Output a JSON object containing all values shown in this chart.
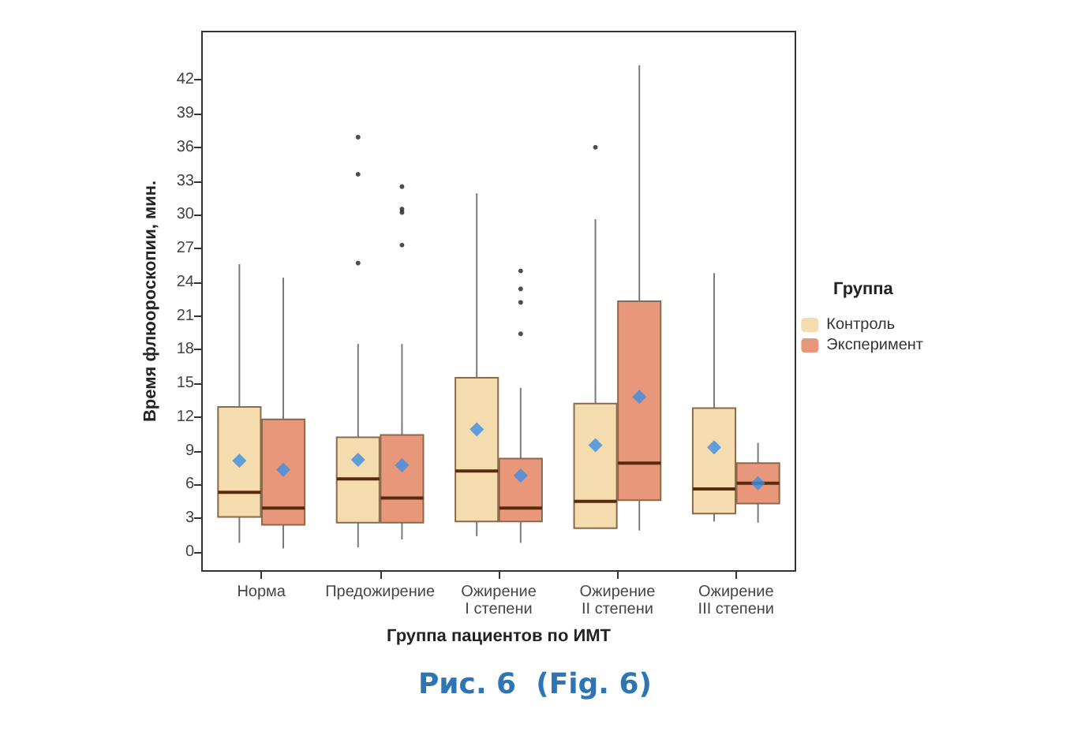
{
  "chart_data": {
    "type": "box",
    "title": "Рис. 6  (Fig. 6)",
    "xlabel": "Группа пациентов по ИМТ",
    "ylabel": "Время флюороскопии, мин.",
    "legend_title": "Группа",
    "legend": "right",
    "grid": false,
    "categories": [
      "Норма",
      "Предожирение",
      "Ожирение\nI степени",
      "Ожирение\nII степени",
      "Ожирение\nIII степени"
    ],
    "ylim": [
      -1.7,
      46.3
    ],
    "yticks": [
      0,
      3,
      6,
      9,
      12,
      15,
      18,
      21,
      24,
      27,
      30,
      33,
      36,
      39,
      42
    ],
    "series": [
      {
        "name": "Контроль",
        "color": "#f5dcae",
        "boxes": [
          {
            "low": 0.8,
            "q1": 3.1,
            "median": 5.3,
            "q3": 12.9,
            "high": 25.6,
            "mean": 8.1
          },
          {
            "low": 0.4,
            "q1": 2.6,
            "median": 6.5,
            "q3": 10.2,
            "high": 18.5,
            "mean": 8.2,
            "outliers": [
              25.7,
              33.6,
              36.9
            ]
          },
          {
            "low": 1.4,
            "q1": 2.7,
            "median": 7.2,
            "q3": 15.5,
            "high": 31.9,
            "mean": 10.9
          },
          {
            "low": 2.1,
            "q1": 2.1,
            "median": 4.5,
            "q3": 13.2,
            "high": 29.6,
            "mean": 9.5,
            "outliers": [
              36.0
            ]
          },
          {
            "low": 2.7,
            "q1": 3.4,
            "median": 5.6,
            "q3": 12.8,
            "high": 24.8,
            "mean": 9.3
          }
        ]
      },
      {
        "name": "Эксперимент",
        "color": "#e8977a",
        "boxes": [
          {
            "low": 0.3,
            "q1": 2.4,
            "median": 3.9,
            "q3": 11.8,
            "high": 24.4,
            "mean": 7.3
          },
          {
            "low": 1.1,
            "q1": 2.6,
            "median": 4.8,
            "q3": 10.4,
            "high": 18.5,
            "mean": 7.7,
            "outliers": [
              27.3,
              30.2,
              30.5,
              32.5
            ]
          },
          {
            "low": 0.8,
            "q1": 2.7,
            "median": 3.9,
            "q3": 8.3,
            "high": 14.6,
            "mean": 6.8,
            "outliers": [
              19.4,
              22.2,
              23.4,
              25.0
            ]
          },
          {
            "low": 1.9,
            "q1": 4.6,
            "median": 7.9,
            "q3": 22.3,
            "high": 43.3,
            "mean": 13.8
          },
          {
            "low": 2.6,
            "q1": 4.3,
            "median": 6.1,
            "q3": 7.9,
            "high": 9.7,
            "mean": 6.1
          }
        ]
      }
    ]
  }
}
